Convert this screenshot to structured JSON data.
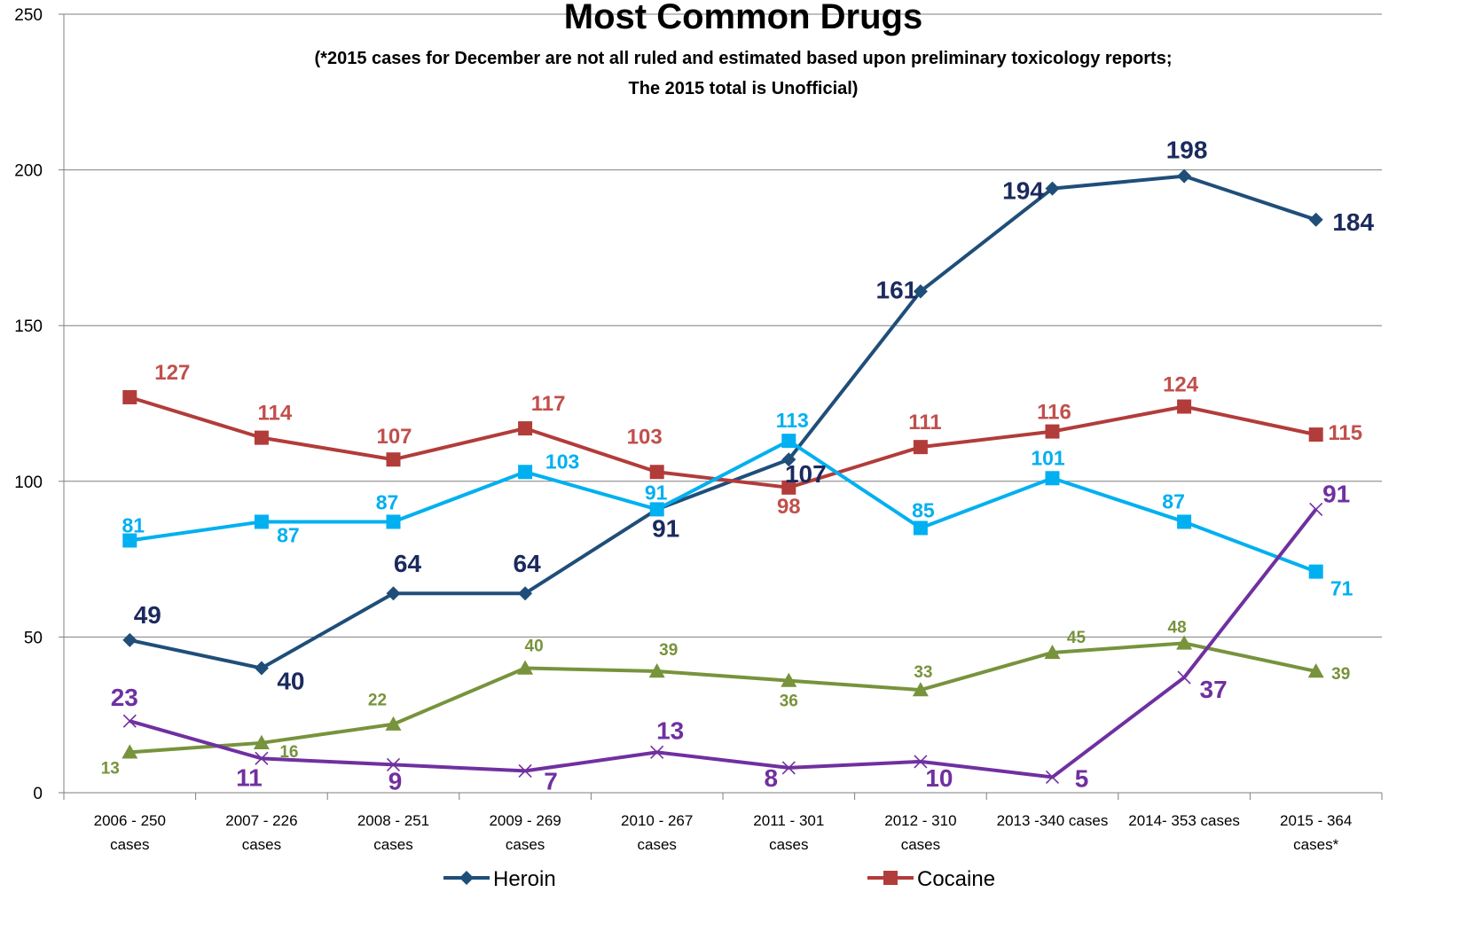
{
  "chart_data": {
    "type": "line",
    "title": "Most Common Drugs",
    "subtitle_lines": [
      "(*2015 cases for December are not all ruled and estimated based upon preliminary toxicology reports;",
      "The 2015 total is Unofficial)"
    ],
    "categories": [
      [
        "2006 - 250",
        "cases"
      ],
      [
        "2007 - 226",
        "cases"
      ],
      [
        "2008 - 251",
        "cases"
      ],
      [
        "2009 - 269",
        "cases"
      ],
      [
        "2010 - 267",
        "cases"
      ],
      [
        "2011 - 301",
        "cases"
      ],
      [
        "2012 - 310",
        "cases"
      ],
      [
        "2013 -340 cases"
      ],
      [
        "2014- 353 cases"
      ],
      [
        "2015 - 364",
        "cases*"
      ]
    ],
    "ylim": [
      0,
      250
    ],
    "yticks": [
      0,
      50,
      100,
      150,
      200,
      250
    ],
    "grid": true,
    "legend_position": "bottom",
    "series": [
      {
        "name": "Heroin",
        "color": "#1F4E79",
        "label_color": "#1B2A5E",
        "marker": "diamond",
        "values": [
          49,
          40,
          64,
          64,
          91,
          107,
          161,
          194,
          198,
          184
        ]
      },
      {
        "name": "Cocaine",
        "color": "#B23C3A",
        "label_color": "#C0504D",
        "marker": "square",
        "values": [
          127,
          114,
          107,
          117,
          103,
          98,
          111,
          116,
          124,
          115
        ]
      },
      {
        "color": "#00B0F0",
        "label_color": "#00B0F0",
        "marker": "square",
        "values": [
          81,
          87,
          87,
          103,
          91,
          113,
          85,
          101,
          87,
          71
        ]
      },
      {
        "color": "#77933C",
        "label_color": "#77933C",
        "marker": "triangle",
        "values": [
          13,
          16,
          22,
          40,
          39,
          36,
          33,
          45,
          48,
          39
        ]
      },
      {
        "color": "#7030A0",
        "label_color": "#7030A0",
        "marker": "x",
        "values": [
          23,
          11,
          9,
          7,
          13,
          8,
          10,
          5,
          37,
          91
        ]
      }
    ]
  }
}
